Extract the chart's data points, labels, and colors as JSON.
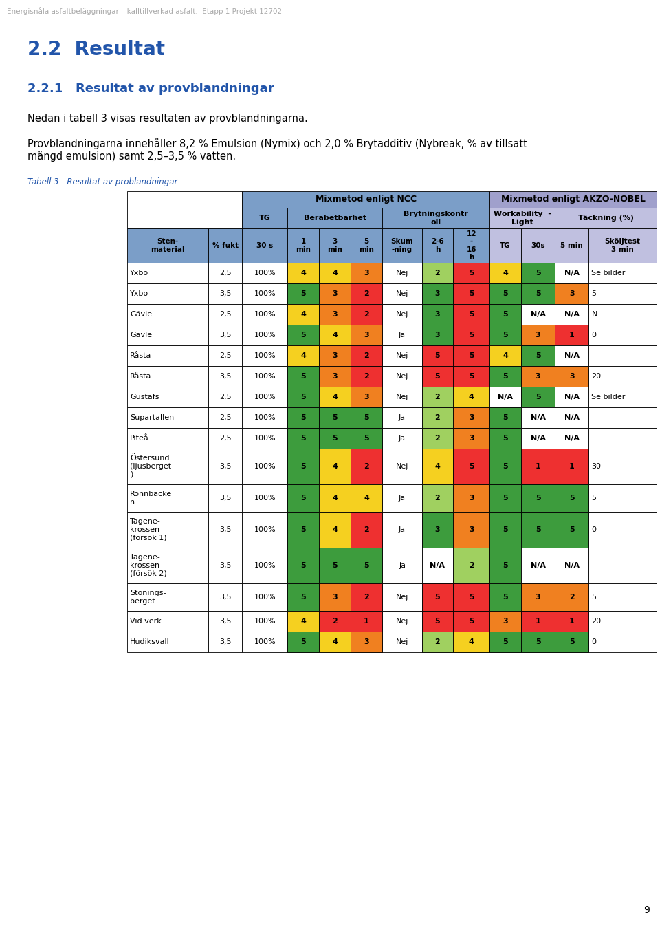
{
  "page_header": "Energisnåla asfaltbeläggningar – kalltillverkad asfalt.  Etapp 1 Projekt 12702",
  "heading1": "2.2  Resultat",
  "heading2": "2.2.1   Resultat av provblandningar",
  "para1": "Nedan i tabell 3 visas resultaten av provblandningarna.",
  "para2_line1": "Provblandningarna innehåller 8,2 % Emulsion (Nymix) och 2,0 % Brytadditiv (Nybreak, % av tillsatt",
  "para2_line2": "mängd emulsion) samt 2,5–3,5 % vatten.",
  "table_caption": "Tabell 3 - Resultat av problandningar",
  "page_number": "9",
  "ncc_bg": "#7B9EC8",
  "akzo_bg": "#A0A0CC",
  "akzo_sub_bg": "#C0C0E0",
  "green_dark": "#3D9C3D",
  "green_light": "#A0D060",
  "yellow": "#F5D020",
  "orange": "#F08020",
  "red": "#EE3030",
  "white": "#FFFFFF",
  "rows": [
    {
      "sten": "Yxbo",
      "fukt": "2,5",
      "tg30": "100%",
      "m1": "4",
      "m3": "4",
      "m5": "3",
      "skum": "Nej",
      "b26": "2",
      "b1216": "5",
      "tg": "4",
      "w30": "5",
      "w5": "N/A",
      "skol": "Se bilder",
      "m1c": "yellow",
      "m3c": "yellow",
      "m5c": "orange",
      "b26c": "green_light",
      "b1216c": "red",
      "tgc": "yellow",
      "w30c": "green_dark",
      "w5c": "white"
    },
    {
      "sten": "Yxbo",
      "fukt": "3,5",
      "tg30": "100%",
      "m1": "5",
      "m3": "3",
      "m5": "2",
      "skum": "Nej",
      "b26": "3",
      "b1216": "5",
      "tg": "5",
      "w30": "5",
      "w5": "3",
      "skol": "5",
      "m1c": "green_dark",
      "m3c": "orange",
      "m5c": "red",
      "b26c": "green_dark",
      "b1216c": "red",
      "tgc": "green_dark",
      "w30c": "green_dark",
      "w5c": "orange"
    },
    {
      "sten": "Gävle",
      "fukt": "2,5",
      "tg30": "100%",
      "m1": "4",
      "m3": "3",
      "m5": "2",
      "skum": "Nej",
      "b26": "3",
      "b1216": "5",
      "tg": "5",
      "w30": "N/A",
      "w5": "N/A",
      "skol": "N",
      "m1c": "yellow",
      "m3c": "orange",
      "m5c": "red",
      "b26c": "green_dark",
      "b1216c": "red",
      "tgc": "green_dark",
      "w30c": "white",
      "w5c": "white"
    },
    {
      "sten": "Gävle",
      "fukt": "3,5",
      "tg30": "100%",
      "m1": "5",
      "m3": "4",
      "m5": "3",
      "skum": "Ja",
      "b26": "3",
      "b1216": "5",
      "tg": "5",
      "w30": "3",
      "w5": "1",
      "skol": "0",
      "m1c": "green_dark",
      "m3c": "yellow",
      "m5c": "orange",
      "b26c": "green_dark",
      "b1216c": "red",
      "tgc": "green_dark",
      "w30c": "orange",
      "w5c": "red"
    },
    {
      "sten": "Råsta",
      "fukt": "2,5",
      "tg30": "100%",
      "m1": "4",
      "m3": "3",
      "m5": "2",
      "skum": "Nej",
      "b26": "5",
      "b1216": "5",
      "tg": "4",
      "w30": "5",
      "w5": "N/A",
      "skol": "",
      "m1c": "yellow",
      "m3c": "orange",
      "m5c": "red",
      "b26c": "red",
      "b1216c": "red",
      "tgc": "yellow",
      "w30c": "green_dark",
      "w5c": "white"
    },
    {
      "sten": "Råsta",
      "fukt": "3,5",
      "tg30": "100%",
      "m1": "5",
      "m3": "3",
      "m5": "2",
      "skum": "Nej",
      "b26": "5",
      "b1216": "5",
      "tg": "5",
      "w30": "3",
      "w5": "3",
      "skol": "20",
      "m1c": "green_dark",
      "m3c": "orange",
      "m5c": "red",
      "b26c": "red",
      "b1216c": "red",
      "tgc": "green_dark",
      "w30c": "orange",
      "w5c": "orange"
    },
    {
      "sten": "Gustafs",
      "fukt": "2,5",
      "tg30": "100%",
      "m1": "5",
      "m3": "4",
      "m5": "3",
      "skum": "Nej",
      "b26": "2",
      "b1216": "4",
      "tg": "N/A",
      "w30": "5",
      "w5": "N/A",
      "skol": "Se bilder",
      "m1c": "green_dark",
      "m3c": "yellow",
      "m5c": "orange",
      "b26c": "green_light",
      "b1216c": "yellow",
      "tgc": "white",
      "w30c": "green_dark",
      "w5c": "white"
    },
    {
      "sten": "Supartallen",
      "fukt": "2,5",
      "tg30": "100%",
      "m1": "5",
      "m3": "5",
      "m5": "5",
      "skum": "Ja",
      "b26": "2",
      "b1216": "3",
      "tg": "5",
      "w30": "N/A",
      "w5": "N/A",
      "skol": "",
      "m1c": "green_dark",
      "m3c": "green_dark",
      "m5c": "green_dark",
      "b26c": "green_light",
      "b1216c": "orange",
      "tgc": "green_dark",
      "w30c": "white",
      "w5c": "white"
    },
    {
      "sten": "Piteå",
      "fukt": "2,5",
      "tg30": "100%",
      "m1": "5",
      "m3": "5",
      "m5": "5",
      "skum": "Ja",
      "b26": "2",
      "b1216": "3",
      "tg": "5",
      "w30": "N/A",
      "w5": "N/A",
      "skol": "",
      "m1c": "green_dark",
      "m3c": "green_dark",
      "m5c": "green_dark",
      "b26c": "green_light",
      "b1216c": "orange",
      "tgc": "green_dark",
      "w30c": "white",
      "w5c": "white"
    },
    {
      "sten": "Östersund\n(ljusberget\n)",
      "fukt": "3,5",
      "tg30": "100%",
      "m1": "5",
      "m3": "4",
      "m5": "2",
      "skum": "Nej",
      "b26": "4",
      "b1216": "5",
      "tg": "5",
      "w30": "1",
      "w5": "1",
      "skol": "30",
      "m1c": "green_dark",
      "m3c": "yellow",
      "m5c": "red",
      "b26c": "yellow",
      "b1216c": "red",
      "tgc": "green_dark",
      "w30c": "red",
      "w5c": "red"
    },
    {
      "sten": "Rönnbäcke\nn",
      "fukt": "3,5",
      "tg30": "100%",
      "m1": "5",
      "m3": "4",
      "m5": "4",
      "skum": "Ja",
      "b26": "2",
      "b1216": "3",
      "tg": "5",
      "w30": "5",
      "w5": "5",
      "skol": "5",
      "m1c": "green_dark",
      "m3c": "yellow",
      "m5c": "yellow",
      "b26c": "green_light",
      "b1216c": "orange",
      "tgc": "green_dark",
      "w30c": "green_dark",
      "w5c": "green_dark"
    },
    {
      "sten": "Tagene-\nkrossen\n(försök 1)",
      "fukt": "3,5",
      "tg30": "100%",
      "m1": "5",
      "m3": "4",
      "m5": "2",
      "skum": "Ja",
      "b26": "3",
      "b1216": "3",
      "tg": "5",
      "w30": "5",
      "w5": "5",
      "skol": "0",
      "m1c": "green_dark",
      "m3c": "yellow",
      "m5c": "red",
      "b26c": "green_dark",
      "b1216c": "orange",
      "tgc": "green_dark",
      "w30c": "green_dark",
      "w5c": "green_dark"
    },
    {
      "sten": "Tagene-\nkrossen\n(försök 2)",
      "fukt": "3,5",
      "tg30": "100%",
      "m1": "5",
      "m3": "5",
      "m5": "5",
      "skum": "ja",
      "b26": "N/A",
      "b1216": "2",
      "tg": "5",
      "w30": "N/A",
      "w5": "N/A",
      "skol": "",
      "m1c": "green_dark",
      "m3c": "green_dark",
      "m5c": "green_dark",
      "b26c": "white",
      "b1216c": "green_light",
      "tgc": "green_dark",
      "w30c": "white",
      "w5c": "white"
    },
    {
      "sten": "Stönings-\nberget",
      "fukt": "3,5",
      "tg30": "100%",
      "m1": "5",
      "m3": "3",
      "m5": "2",
      "skum": "Nej",
      "b26": "5",
      "b1216": "5",
      "tg": "5",
      "w30": "3",
      "w5": "2",
      "skol": "5",
      "m1c": "green_dark",
      "m3c": "orange",
      "m5c": "red",
      "b26c": "red",
      "b1216c": "red",
      "tgc": "green_dark",
      "w30c": "orange",
      "w5c": "orange"
    },
    {
      "sten": "Vid verk",
      "fukt": "3,5",
      "tg30": "100%",
      "m1": "4",
      "m3": "2",
      "m5": "1",
      "skum": "Nej",
      "b26": "5",
      "b1216": "5",
      "tg": "3",
      "w30": "1",
      "w5": "1",
      "skol": "20",
      "m1c": "yellow",
      "m3c": "red",
      "m5c": "red",
      "b26c": "red",
      "b1216c": "red",
      "tgc": "orange",
      "w30c": "red",
      "w5c": "red"
    },
    {
      "sten": "Hudiksvall",
      "fukt": "3,5",
      "tg30": "100%",
      "m1": "5",
      "m3": "4",
      "m5": "3",
      "skum": "Nej",
      "b26": "2",
      "b1216": "4",
      "tg": "5",
      "w30": "5",
      "w5": "5",
      "skol": "0",
      "m1c": "green_dark",
      "m3c": "yellow",
      "m5c": "orange",
      "b26c": "green_light",
      "b1216c": "yellow",
      "tgc": "green_dark",
      "w30c": "green_dark",
      "w5c": "green_dark"
    }
  ]
}
